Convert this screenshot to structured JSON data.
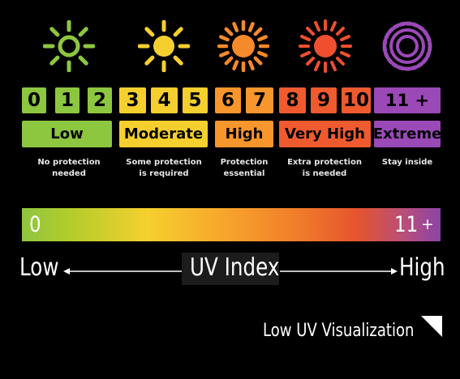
{
  "icons": {
    "low": {
      "name": "sun-outline-icon",
      "color": "#8dc63f"
    },
    "moderate": {
      "name": "sun-icon",
      "color": "#f5cf2e"
    },
    "high": {
      "name": "sun-icon",
      "color": "#f58a2b"
    },
    "very_high": {
      "name": "sun-icon",
      "color": "#ef4f2f"
    },
    "extreme": {
      "name": "sun-ring-icon",
      "color": "#9a49b7"
    }
  },
  "scale": {
    "numbers": [
      "0",
      "1",
      "2",
      "3",
      "4",
      "5",
      "6",
      "7",
      "8",
      "9",
      "10",
      "11 +"
    ],
    "levels": [
      {
        "label": "Low",
        "description": "No protection\nneeded",
        "color": "#8dc63f"
      },
      {
        "label": "Moderate",
        "description": "Some protection\nis required",
        "color": "#f5cf2e"
      },
      {
        "label": "High",
        "description": "Protection\nessential",
        "color": "#f7962c"
      },
      {
        "label": "Very High",
        "description": "Extra protection\nis needed",
        "color": "#ef5a2f"
      },
      {
        "label": "Extreme",
        "description": "Stay inside",
        "color": "#9a49b7"
      }
    ]
  },
  "gradient_bar": {
    "min_label": "0",
    "max_label": "11",
    "max_suffix": "+"
  },
  "axis": {
    "left_label": "Low",
    "center_label": "UV Index",
    "right_label": "High"
  },
  "footer": {
    "title": "Low UV Visualization"
  }
}
